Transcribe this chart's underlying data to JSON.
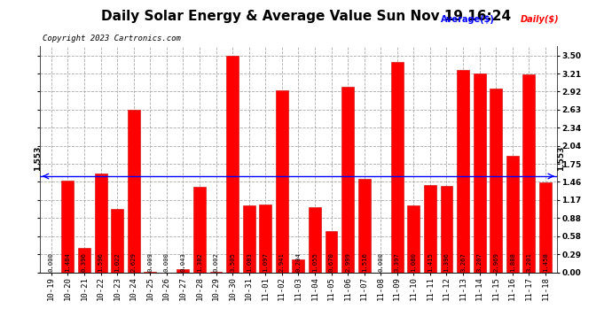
{
  "title": "Daily Solar Energy & Average Value Sun Nov 19 16:24",
  "copyright": "Copyright 2023 Cartronics.com",
  "legend_avg": "Average($)",
  "legend_daily": "Daily($)",
  "average_line": 1.553,
  "average_label": "1.553",
  "categories": [
    "10-19",
    "10-20",
    "10-21",
    "10-22",
    "10-23",
    "10-24",
    "10-25",
    "10-26",
    "10-27",
    "10-28",
    "10-29",
    "10-30",
    "10-31",
    "11-01",
    "11-02",
    "11-03",
    "11-04",
    "11-05",
    "11-06",
    "11-07",
    "11-08",
    "11-09",
    "11-10",
    "11-11",
    "11-12",
    "11-13",
    "11-14",
    "11-15",
    "11-16",
    "11-17",
    "11-18"
  ],
  "values": [
    0.0,
    1.484,
    0.396,
    1.596,
    1.022,
    2.629,
    0.009,
    0.0,
    0.043,
    1.382,
    0.002,
    3.505,
    1.083,
    1.097,
    2.941,
    0.204,
    1.055,
    0.67,
    2.999,
    1.516,
    0.0,
    3.397,
    1.08,
    1.415,
    1.396,
    3.267,
    3.207,
    2.969,
    1.888,
    3.201,
    1.458
  ],
  "bar_color": "#ff0000",
  "bar_edge_color": "#cc0000",
  "avg_line_color": "#0000ff",
  "background_color": "#ffffff",
  "grid_color": "#aaaaaa",
  "ylim": [
    0,
    3.65
  ],
  "yticks": [
    0.0,
    0.29,
    0.58,
    0.88,
    1.17,
    1.46,
    1.75,
    2.04,
    2.34,
    2.63,
    2.92,
    3.21,
    3.5
  ],
  "title_fontsize": 11,
  "tick_fontsize": 6.5,
  "value_fontsize": 5.2,
  "copyright_fontsize": 6.5,
  "avg_label_fontsize": 6.5
}
